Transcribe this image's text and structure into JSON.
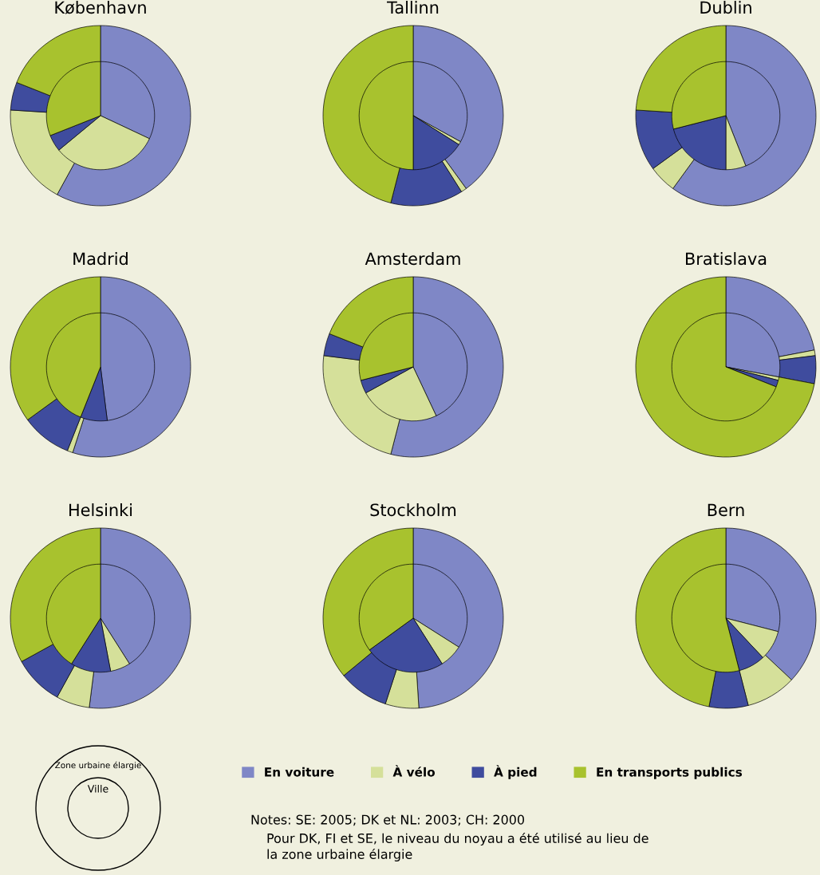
{
  "chart_data": [
    {
      "type": "pie",
      "title": "København",
      "categories": [
        "En voiture",
        "À vélo",
        "À pied",
        "En transports publics"
      ],
      "colors": [
        "#7f87c6",
        "#d5e09a",
        "#3f4c9e",
        "#a8c22e"
      ],
      "series": [
        {
          "values": [
            58,
            18,
            5,
            19
          ]
        },
        {
          "values": [
            32,
            32,
            5,
            31
          ]
        }
      ],
      "legend": "bottom"
    },
    {
      "type": "pie",
      "title": "Tallinn",
      "colors": [
        "#7f87c6",
        "#d5e09a",
        "#3f4c9e",
        "#a8c22e"
      ],
      "series": [
        {
          "values": [
            40,
            1,
            13,
            46
          ]
        },
        {
          "values": [
            33,
            1,
            16,
            50
          ]
        }
      ]
    },
    {
      "type": "pie",
      "title": "Dublin",
      "colors": [
        "#7f87c6",
        "#d5e09a",
        "#3f4c9e",
        "#a8c22e"
      ],
      "series": [
        {
          "values": [
            60,
            5,
            11,
            24
          ]
        },
        {
          "values": [
            44,
            6,
            21,
            29
          ]
        }
      ]
    },
    {
      "type": "pie",
      "title": "Madrid",
      "colors": [
        "#7f87c6",
        "#d5e09a",
        "#3f4c9e",
        "#a8c22e"
      ],
      "series": [
        {
          "values": [
            55,
            1,
            9,
            35
          ]
        },
        {
          "values": [
            48,
            null,
            8,
            44
          ]
        }
      ]
    },
    {
      "type": "pie",
      "title": "Amsterdam",
      "colors": [
        "#7f87c6",
        "#d5e09a",
        "#3f4c9e",
        "#a8c22e"
      ],
      "series": [
        {
          "values": [
            54,
            23,
            4,
            19
          ]
        },
        {
          "values": [
            43,
            24,
            4,
            29
          ]
        }
      ]
    },
    {
      "type": "pie",
      "title": "Bratislava",
      "colors": [
        "#7f87c6",
        "#d5e09a",
        "#3f4c9e",
        "#a8c22e"
      ],
      "series": [
        {
          "values": [
            22,
            1,
            5,
            72
          ]
        },
        {
          "values": [
            28,
            1,
            2,
            69
          ]
        }
      ]
    },
    {
      "type": "pie",
      "title": "Helsinki",
      "colors": [
        "#7f87c6",
        "#d5e09a",
        "#3f4c9e",
        "#a8c22e"
      ],
      "series": [
        {
          "values": [
            52,
            6,
            9,
            33
          ]
        },
        {
          "values": [
            41,
            6,
            12,
            41
          ]
        }
      ]
    },
    {
      "type": "pie",
      "title": "Stockholm",
      "colors": [
        "#7f87c6",
        "#d5e09a",
        "#3f4c9e",
        "#a8c22e"
      ],
      "series": [
        {
          "values": [
            49,
            6,
            9,
            36
          ]
        },
        {
          "values": [
            34,
            7,
            24,
            35
          ]
        }
      ]
    },
    {
      "type": "pie",
      "title": "Bern",
      "colors": [
        "#7f87c6",
        "#d5e09a",
        "#3f4c9e",
        "#a8c22e"
      ],
      "series": [
        {
          "values": [
            37,
            9,
            7,
            47
          ]
        },
        {
          "values": [
            29,
            9,
            8,
            54
          ]
        }
      ]
    },
    {
      "type": "other",
      "annotations": [
        "Zone urbaine élargie",
        "Ville",
        "Notes: SE: 2005; DK et NL: 2003; CH: 2000",
        "Pour DK, FI et SE, le niveau du noyau a été utilisé au lieu de\nla zone urbaine élargie"
      ]
    }
  ]
}
